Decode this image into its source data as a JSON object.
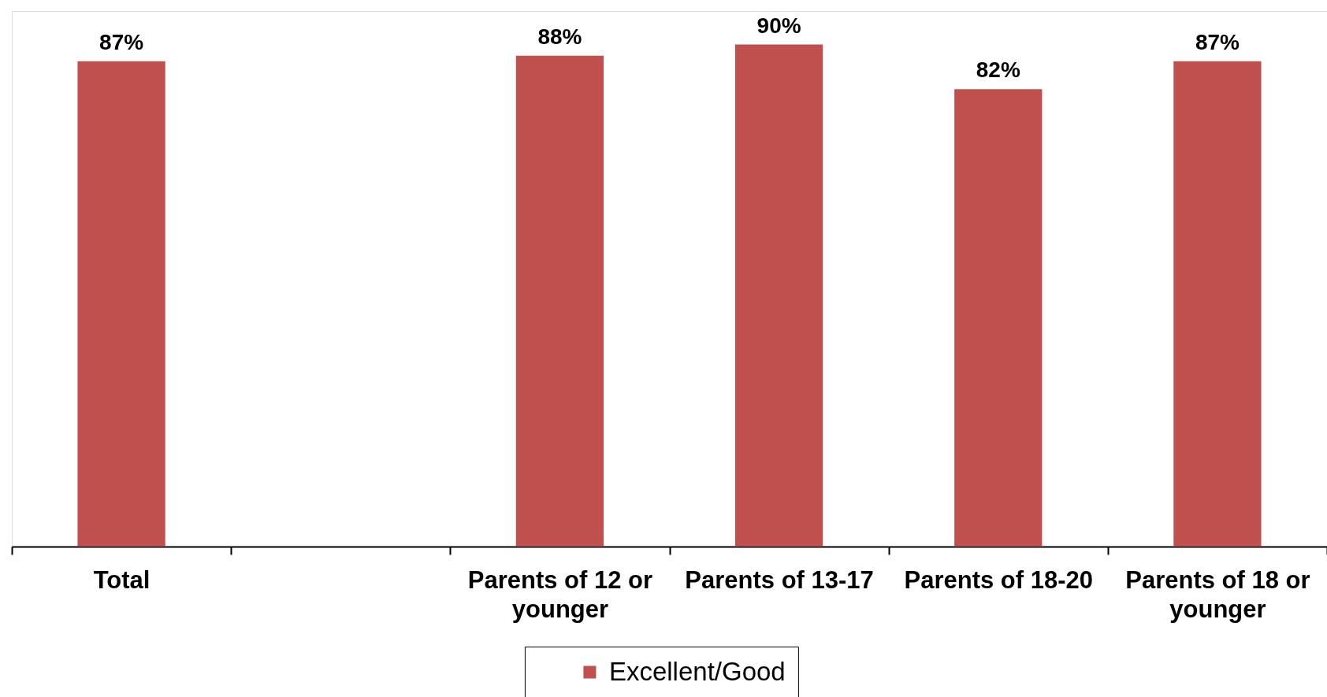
{
  "chart_data": {
    "type": "bar",
    "categories": [
      "Total",
      null,
      "Parents of 12 or younger",
      "Parents of 13-17",
      "Parents of 18-20",
      "Parents of 18 or younger"
    ],
    "series": [
      {
        "name": "Excellent/Good",
        "color": "#c0504d",
        "values": [
          87,
          null,
          88,
          90,
          82,
          87
        ],
        "value_labels": [
          "87%",
          null,
          "88%",
          "90%",
          "82%",
          "87%"
        ]
      }
    ],
    "ylim": [
      0,
      96
    ],
    "tick_labels": "x",
    "legend": "bottom"
  }
}
